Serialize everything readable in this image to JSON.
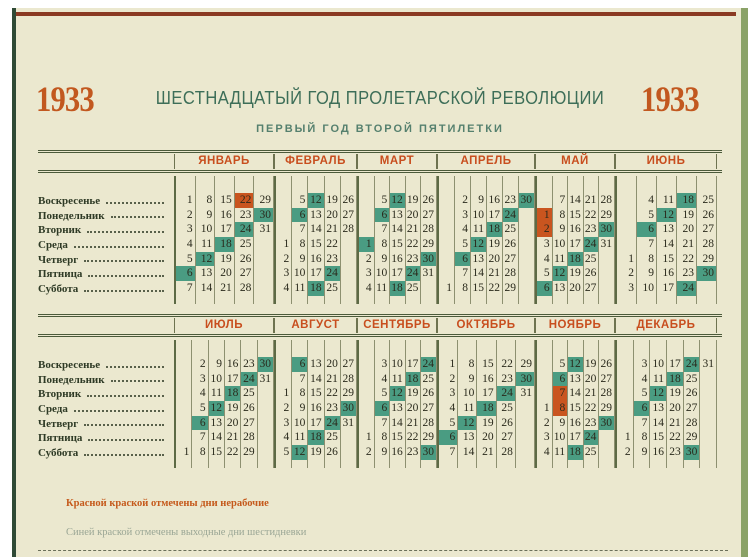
{
  "year": "1933",
  "title": "ШЕСТНАДЦАТЫЙ ГОД ПРОЛЕТАРСКОЙ РЕВОЛЮЦИИ",
  "subtitle": "ПЕРВЫЙ ГОД ВТОРОЙ ПЯТИЛЕТКИ",
  "colors": {
    "holiday": "#c9551f",
    "day_off": "#4a9c82",
    "month_name": "#c84e1e",
    "year": "#c2581f"
  },
  "weekdays": [
    "Воскресенье",
    "Понедельник",
    "Вторник",
    "Среда",
    "Четверг",
    "Пятница",
    "Суббота"
  ],
  "months": [
    {
      "name": "ЯНВАРЬ",
      "first_weekday": "Воскресенье",
      "days": 31,
      "red": [
        22
      ],
      "teal": [
        6,
        12,
        18,
        24,
        30
      ]
    },
    {
      "name": "ФЕВРАЛЬ",
      "first_weekday": "Среда",
      "days": 28,
      "red": [],
      "teal": [
        6,
        12,
        18,
        24
      ]
    },
    {
      "name": "МАРТ",
      "first_weekday": "Среда",
      "days": 31,
      "red": [],
      "teal": [
        1,
        6,
        12,
        18,
        24,
        30
      ]
    },
    {
      "name": "АПРЕЛЬ",
      "first_weekday": "Суббота",
      "days": 30,
      "red": [],
      "teal": [
        6,
        12,
        18,
        24,
        30
      ]
    },
    {
      "name": "МАЙ",
      "first_weekday": "Понедельник",
      "days": 31,
      "red": [
        1,
        2
      ],
      "teal": [
        6,
        12,
        18,
        24,
        30
      ]
    },
    {
      "name": "ИЮНЬ",
      "first_weekday": "Четверг",
      "days": 30,
      "red": [],
      "teal": [
        6,
        12,
        18,
        24,
        30
      ]
    },
    {
      "name": "ИЮЛЬ",
      "first_weekday": "Суббота",
      "days": 31,
      "red": [],
      "teal": [
        6,
        12,
        18,
        24,
        30
      ]
    },
    {
      "name": "АВГУСТ",
      "first_weekday": "Вторник",
      "days": 31,
      "red": [],
      "teal": [
        6,
        12,
        18,
        24,
        30
      ]
    },
    {
      "name": "СЕНТЯБРЬ",
      "first_weekday": "Пятница",
      "days": 30,
      "red": [],
      "teal": [
        6,
        12,
        18,
        24,
        30
      ]
    },
    {
      "name": "ОКТЯБРЬ",
      "first_weekday": "Воскресенье",
      "days": 31,
      "red": [],
      "teal": [
        6,
        12,
        18,
        24,
        30
      ]
    },
    {
      "name": "НОЯБРЬ",
      "first_weekday": "Среда",
      "days": 30,
      "red": [
        7,
        8
      ],
      "teal": [
        6,
        12,
        18,
        24,
        30
      ]
    },
    {
      "name": "ДЕКАБРЬ",
      "first_weekday": "Пятница",
      "days": 31,
      "red": [],
      "teal": [
        6,
        12,
        18,
        24,
        30
      ]
    }
  ],
  "legend": {
    "red_note": "Красной краской отмечены дни нерабочие",
    "blue_note": "Синей краской отмечены выходные дни шестидневки"
  }
}
